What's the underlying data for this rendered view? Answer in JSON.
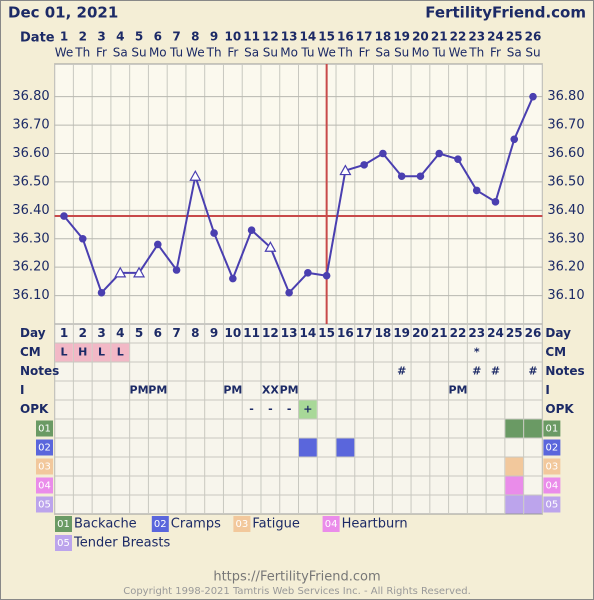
{
  "chart_data": {
    "type": "line",
    "title": "Dec 01, 2021",
    "site": "FertilityFriend.com",
    "date_label": "Date",
    "categories": [
      "1",
      "2",
      "3",
      "4",
      "5",
      "6",
      "7",
      "8",
      "9",
      "10",
      "11",
      "12",
      "13",
      "14",
      "15",
      "16",
      "17",
      "18",
      "19",
      "20",
      "21",
      "22",
      "23",
      "24",
      "25",
      "26"
    ],
    "weekdays": [
      "We",
      "Th",
      "Fr",
      "Sa",
      "Su",
      "Mo",
      "Tu",
      "We",
      "Th",
      "Fr",
      "Sa",
      "Su",
      "Mo",
      "Tu",
      "We",
      "Th",
      "Fr",
      "Sa",
      "Su",
      "Mo",
      "Tu",
      "We",
      "Th",
      "Fr",
      "Sa",
      "Su"
    ],
    "values": [
      36.38,
      36.3,
      36.11,
      36.18,
      36.18,
      36.28,
      36.19,
      36.52,
      36.32,
      36.16,
      36.33,
      36.27,
      36.11,
      36.18,
      36.17,
      36.54,
      36.56,
      36.6,
      36.52,
      36.52,
      36.6,
      36.58,
      36.47,
      36.43,
      36.65,
      36.8
    ],
    "markers": [
      "circle",
      "circle",
      "circle",
      "triangle",
      "triangle",
      "circle",
      "circle",
      "triangle",
      "circle",
      "circle",
      "circle",
      "triangle",
      "circle",
      "circle",
      "circle",
      "triangle",
      "circle",
      "circle",
      "circle",
      "circle",
      "circle",
      "circle",
      "circle",
      "circle",
      "circle",
      "circle"
    ],
    "color": "#4a3fb0",
    "coverline": 36.38,
    "coverline_color": "#c84a4a",
    "ovulation_day": "15",
    "ylim": [
      36.0,
      36.915
    ],
    "yticks": [
      {
        "value": 36.1,
        "label": "36.10"
      },
      {
        "value": 36.2,
        "label": "36.20"
      },
      {
        "value": 36.3,
        "label": "36.30"
      },
      {
        "value": 36.4,
        "label": "36.40"
      },
      {
        "value": 36.5,
        "label": "36.50"
      },
      {
        "value": 36.6,
        "label": "36.60"
      },
      {
        "value": 36.7,
        "label": "36.70"
      },
      {
        "value": 36.8,
        "label": "36.80"
      }
    ],
    "grid": true
  },
  "table": {
    "day_label": "Day",
    "rows": [
      {
        "label": "CM",
        "cells": [
          "L",
          "H",
          "L",
          "L",
          null,
          null,
          null,
          null,
          null,
          null,
          null,
          null,
          null,
          null,
          null,
          null,
          null,
          null,
          null,
          null,
          null,
          null,
          "*",
          null,
          null,
          null
        ],
        "fills": {
          "L": "#f2b8c6",
          "H": "#f2b8c6"
        }
      },
      {
        "label": "Notes",
        "cells": [
          null,
          null,
          null,
          null,
          null,
          null,
          null,
          null,
          null,
          null,
          null,
          null,
          null,
          null,
          null,
          null,
          null,
          null,
          "#",
          null,
          null,
          null,
          "#",
          "#",
          null,
          "#"
        ],
        "fills": {}
      },
      {
        "label": "I",
        "cells": [
          null,
          null,
          null,
          null,
          "PM",
          "PM",
          null,
          null,
          null,
          "PM",
          null,
          "XX",
          "PM",
          null,
          null,
          null,
          null,
          null,
          null,
          null,
          null,
          "PM",
          null,
          null,
          null,
          null
        ],
        "fills": {}
      },
      {
        "label": "OPK",
        "cells": [
          null,
          null,
          null,
          null,
          null,
          null,
          null,
          null,
          null,
          null,
          "-",
          "-",
          "-",
          "+",
          null,
          null,
          null,
          null,
          null,
          null,
          null,
          null,
          null,
          null,
          null,
          null
        ],
        "fills": {
          "+": "#a8d898"
        }
      }
    ],
    "symptoms": [
      {
        "code": "01",
        "name": "Backache",
        "color": "#6a9a64",
        "days": [
          "25",
          "26"
        ]
      },
      {
        "code": "02",
        "name": "Cramps",
        "color": "#5a66dc",
        "days": [
          "14",
          "16"
        ]
      },
      {
        "code": "03",
        "name": "Fatigue",
        "color": "#f2c89c",
        "days": [
          "25"
        ]
      },
      {
        "code": "04",
        "name": "Heartburn",
        "color": "#ea8cea",
        "days": [
          "25"
        ]
      },
      {
        "code": "05",
        "name": "Tender Breasts",
        "color": "#bca4ec",
        "days": [
          "25",
          "26"
        ]
      }
    ]
  },
  "footer": {
    "url": "https://FertilityFriend.com",
    "copyright": "Copyright 1998-2021 Tamtris Web Services Inc. - All Rights Reserved."
  }
}
